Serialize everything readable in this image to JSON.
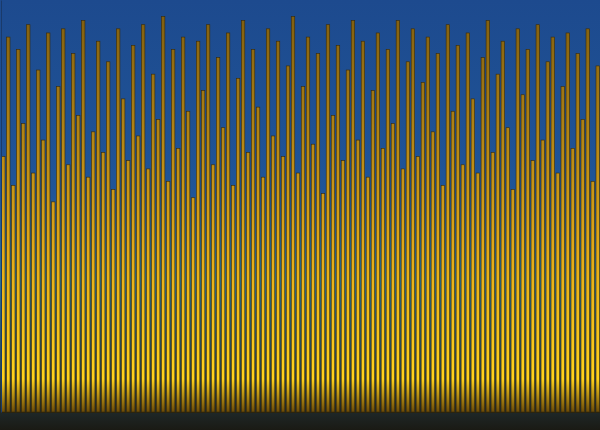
{
  "chart_data": {
    "type": "bar",
    "color": "#e0a81a",
    "tick_labels": false,
    "grid": false,
    "ylim": [
      0,
      100
    ],
    "categories": [
      null,
      null,
      null,
      null,
      null,
      null,
      null,
      null,
      null,
      null,
      null,
      null,
      null,
      null,
      null,
      null,
      null,
      null,
      null,
      null,
      null,
      null,
      null,
      null,
      null,
      null,
      null,
      null,
      null,
      null,
      null,
      null,
      null,
      null,
      null,
      null,
      null,
      null,
      null,
      null,
      null,
      null,
      null,
      null,
      null,
      null,
      null,
      null,
      null,
      null,
      null,
      null,
      null,
      null,
      null,
      null,
      null,
      null,
      null,
      null,
      null,
      null,
      null,
      null,
      null,
      null,
      null,
      null,
      null,
      null,
      null,
      null,
      null,
      null,
      null,
      null,
      null,
      null,
      null,
      null,
      null,
      null,
      null,
      null,
      null,
      null,
      null,
      null,
      null,
      null,
      null,
      null,
      null,
      null,
      null,
      null,
      null,
      null,
      null,
      null,
      null,
      null,
      null,
      null,
      null,
      null,
      null,
      null,
      null,
      null,
      null,
      null,
      null,
      null,
      null,
      null,
      null,
      null,
      null,
      null
    ],
    "values": [
      62,
      91,
      55,
      88,
      70,
      94,
      58,
      83,
      66,
      92,
      51,
      79,
      93,
      60,
      87,
      72,
      95,
      57,
      68,
      90,
      63,
      85,
      54,
      93,
      76,
      61,
      89,
      67,
      94,
      59,
      82,
      71,
      96,
      56,
      88,
      64,
      91,
      73,
      52,
      90,
      78,
      94,
      60,
      86,
      69,
      92,
      55,
      81,
      95,
      63,
      88,
      74,
      57,
      93,
      67,
      90,
      62,
      84,
      96,
      58,
      79,
      91,
      65,
      87,
      53,
      94,
      72,
      89,
      61,
      83,
      95,
      66,
      90,
      57,
      78,
      92,
      64,
      88,
      70,
      95,
      59,
      85,
      93,
      62,
      80,
      91,
      68,
      87,
      55,
      94,
      73,
      89,
      60,
      92,
      76,
      58,
      86,
      95,
      63,
      82,
      90,
      69,
      54,
      93,
      77,
      88,
      61,
      94,
      66,
      85,
      91,
      58,
      79,
      92,
      64,
      87,
      71,
      93,
      56,
      84
    ]
  }
}
